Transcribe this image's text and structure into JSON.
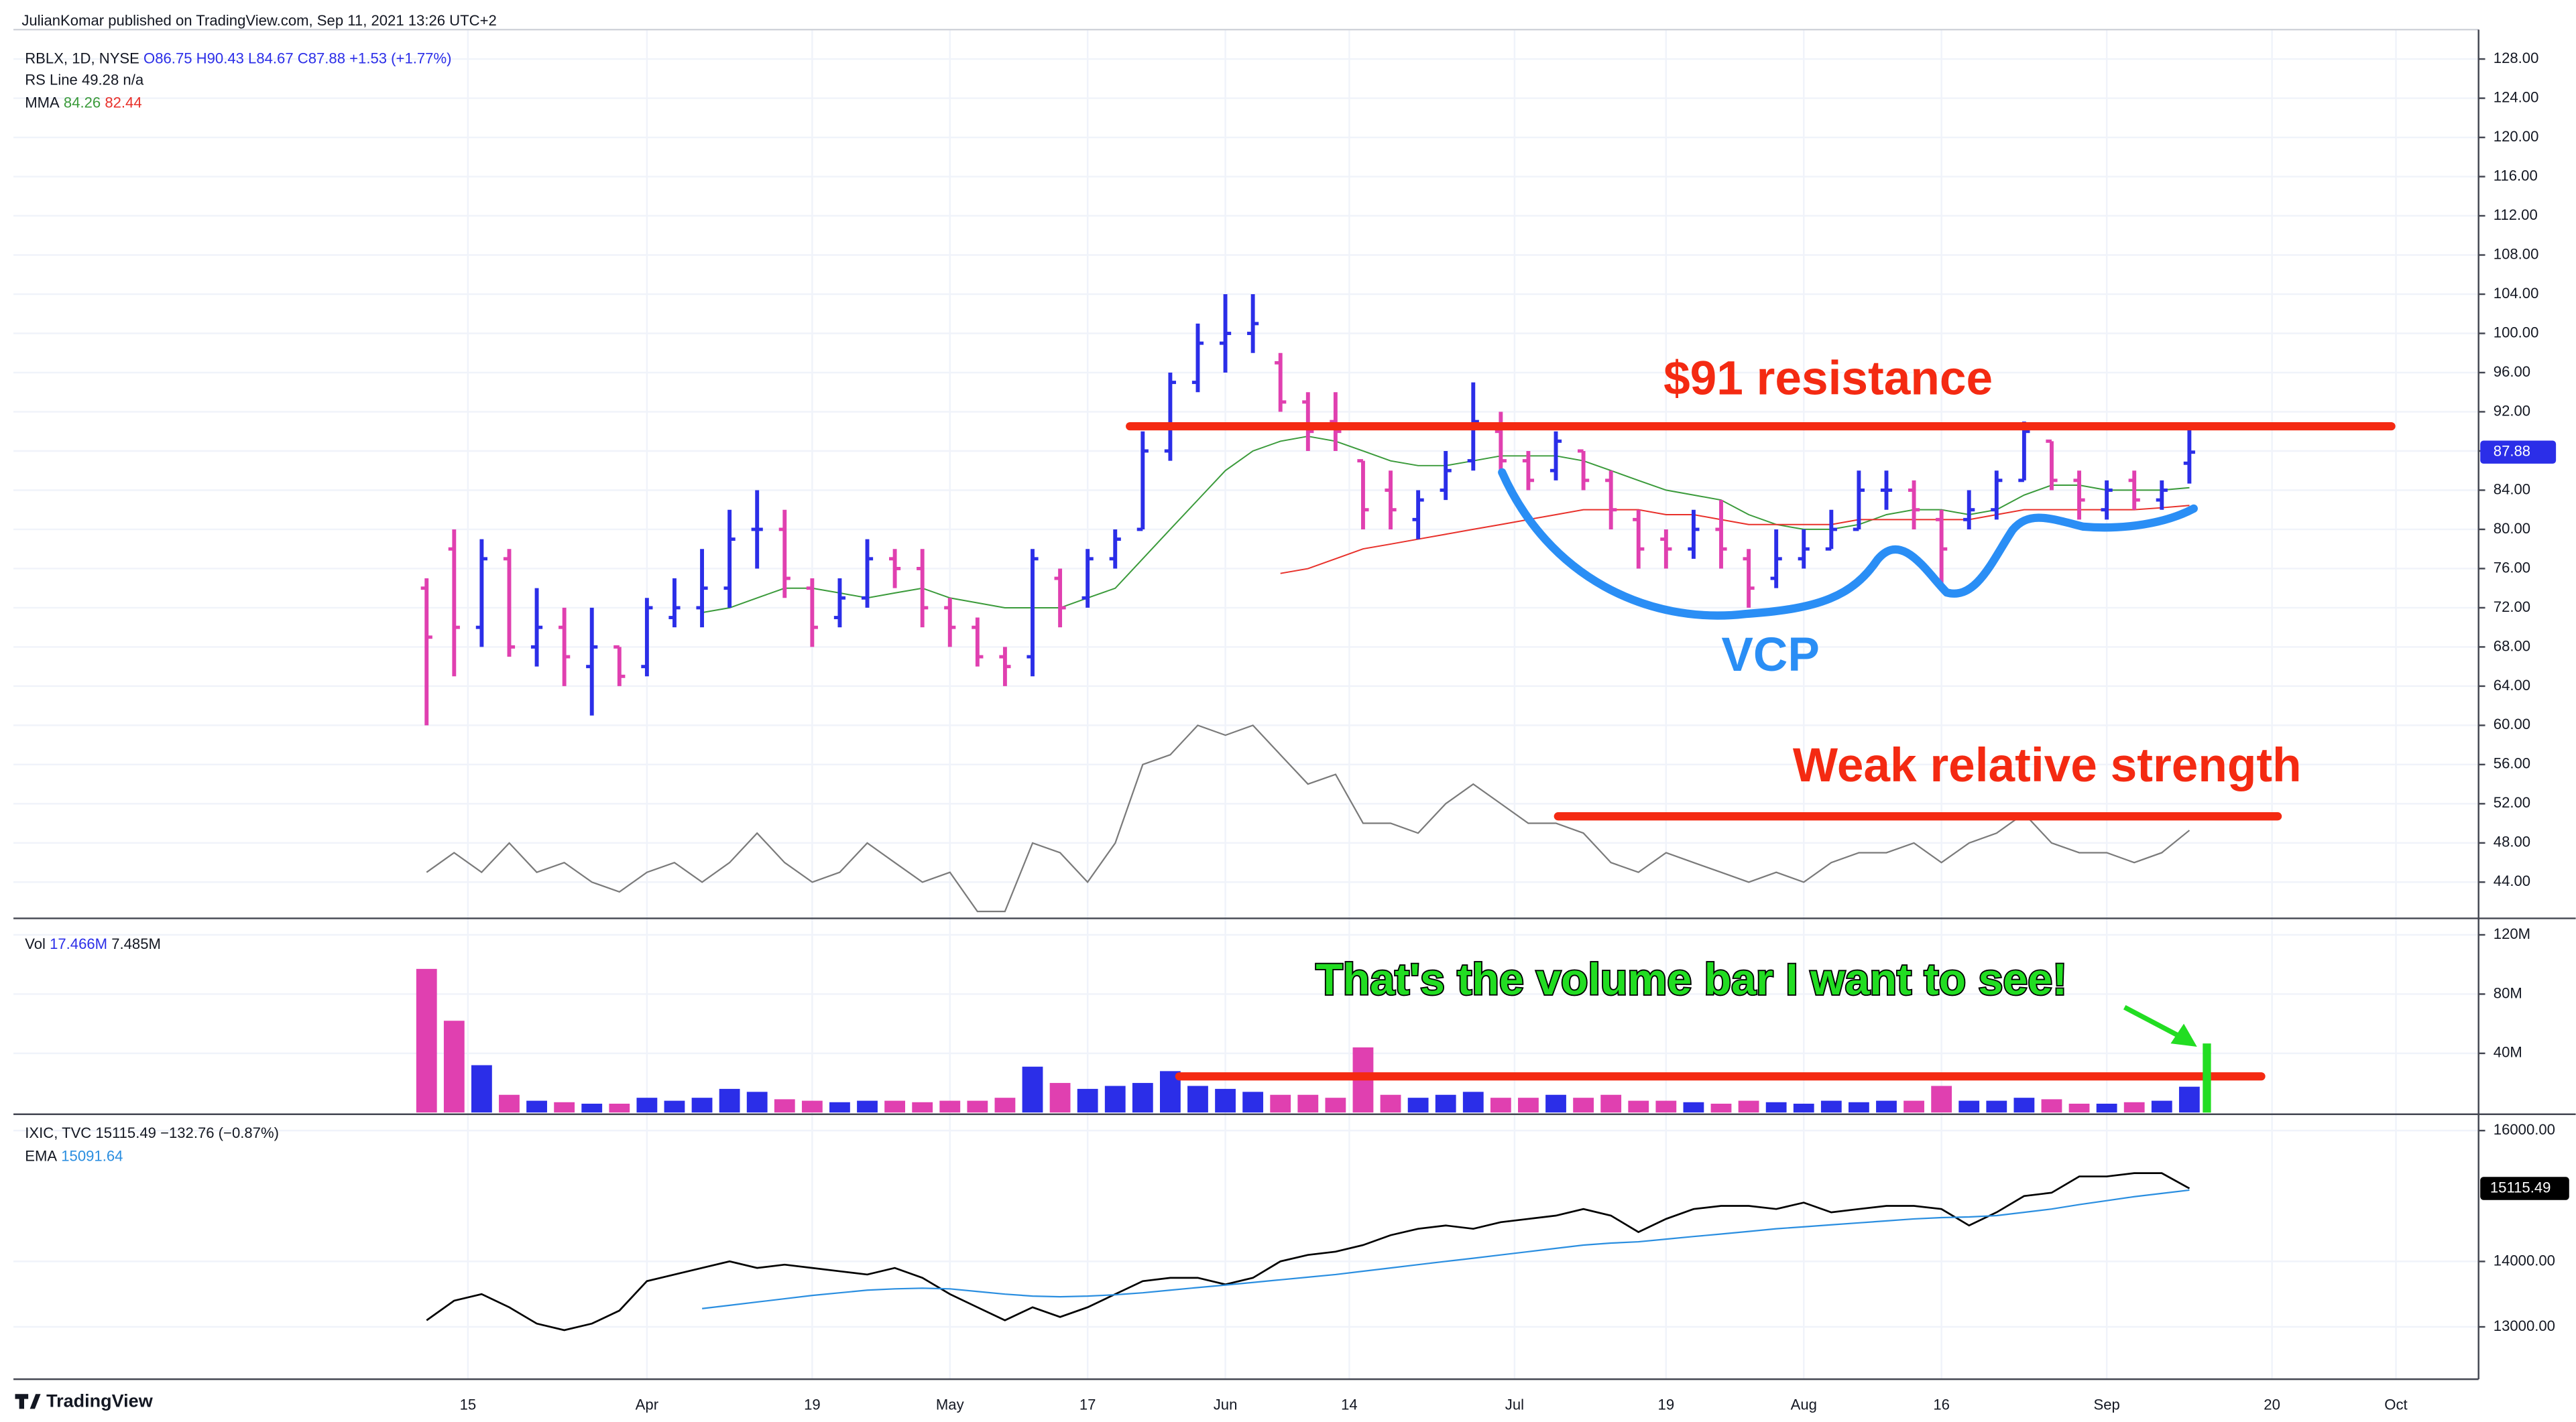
{
  "header": {
    "publisher": "JulianKomar published on TradingView.com, Sep 11, 2021 13:26 UTC+2",
    "footer": "TradingView"
  },
  "annotations": [
    "$91 resistance",
    "VCP",
    "Weak relative strength",
    "That's the volume bar I want to see!"
  ],
  "chart_data": [
    {
      "type": "ohlc",
      "legend": [
        "RBLX, 1D, NYSE",
        "O86.75 H90.43 L84.67 C87.88 +1.53 (+1.77%)",
        "RS Line",
        "49.28",
        "n/a",
        "MMA",
        "84.26",
        "82.44"
      ],
      "x": [
        0,
        2,
        4,
        6,
        8,
        10,
        12,
        14,
        16,
        18,
        20,
        22,
        24,
        26,
        28,
        30,
        32,
        34,
        36,
        38,
        40,
        42,
        44,
        46,
        48,
        50,
        52,
        54,
        56,
        58,
        60,
        62,
        64,
        66,
        68,
        70,
        72,
        74,
        76,
        78,
        80,
        82,
        84,
        86,
        88,
        90,
        92,
        94,
        96,
        98,
        100,
        102,
        104,
        106,
        108,
        110,
        112,
        114,
        116,
        118,
        120,
        122,
        124,
        126,
        128
      ],
      "open": [
        74,
        78,
        70,
        77,
        68,
        70,
        66,
        68,
        66,
        71,
        72,
        74,
        80,
        80,
        74,
        71,
        73,
        77,
        76,
        72,
        70,
        67,
        67,
        75,
        73,
        77,
        80,
        88,
        95,
        99,
        100,
        97,
        93,
        91,
        87,
        84,
        81,
        84,
        87,
        90,
        87,
        86,
        88,
        85,
        81,
        79,
        78,
        80,
        77,
        75,
        77,
        78,
        80,
        84,
        84,
        81,
        81,
        82,
        85,
        89,
        85,
        82,
        85,
        83,
        86.75
      ],
      "high": [
        75,
        80,
        79,
        78,
        74,
        72,
        72,
        68,
        73,
        75,
        78,
        82,
        84,
        82,
        75,
        75,
        79,
        78,
        78,
        73,
        71,
        68,
        78,
        76,
        78,
        80,
        90,
        96,
        101,
        104,
        104,
        98,
        94,
        94,
        87,
        86,
        84,
        88,
        95,
        92,
        88,
        90,
        88,
        86,
        82,
        80,
        82,
        83,
        78,
        80,
        80,
        82,
        86,
        86,
        85,
        82,
        84,
        86,
        91,
        89,
        86,
        85,
        86,
        85,
        90.43
      ],
      "low": [
        60,
        65,
        68,
        67,
        66,
        64,
        61,
        64,
        65,
        70,
        70,
        72,
        76,
        73,
        68,
        70,
        72,
        74,
        70,
        68,
        66,
        64,
        65,
        70,
        72,
        76,
        80,
        87,
        94,
        96,
        98,
        92,
        88,
        88,
        80,
        80,
        79,
        83,
        86,
        86,
        84,
        85,
        84,
        80,
        76,
        76,
        77,
        76,
        72,
        74,
        76,
        78,
        80,
        82,
        80,
        74,
        80,
        81,
        85,
        84,
        81,
        81,
        82,
        82,
        84.67
      ],
      "close": [
        69,
        70,
        77,
        68,
        70,
        67,
        68,
        65,
        72,
        72,
        74,
        79,
        80,
        75,
        70,
        73,
        77,
        76,
        72,
        70,
        67,
        66,
        77,
        72,
        77,
        79,
        88,
        95,
        99,
        100,
        101,
        93,
        90,
        90,
        82,
        82,
        83,
        86,
        91,
        87,
        85,
        89,
        85,
        82,
        78,
        78,
        80,
        78,
        74,
        77,
        78,
        80,
        84,
        84,
        82,
        78,
        82,
        85,
        90,
        85,
        83,
        84,
        83,
        84,
        87.88
      ],
      "up_color": "#2b2ee8",
      "down_color": "#e040b0",
      "series": [
        {
          "name": "RS Line",
          "color": "#7a7a7a",
          "values": [
            45,
            47,
            45,
            48,
            45,
            46,
            44,
            43,
            45,
            46,
            44,
            46,
            49,
            46,
            44,
            45,
            48,
            46,
            44,
            45,
            41,
            41,
            48,
            47,
            44,
            48,
            56,
            57,
            60,
            59,
            60,
            57,
            54,
            55,
            50,
            50,
            49,
            52,
            54,
            52,
            50,
            50,
            49,
            46,
            45,
            47,
            46,
            45,
            44,
            45,
            44,
            46,
            47,
            47,
            48,
            46,
            48,
            49,
            51,
            48,
            47,
            47,
            46,
            47,
            49.28
          ]
        },
        {
          "color": "#3a9a3a",
          "values": [
            null,
            null,
            null,
            null,
            null,
            null,
            null,
            null,
            null,
            null,
            71.5,
            72,
            73,
            74,
            74,
            73.5,
            73,
            73.5,
            74,
            73,
            72.5,
            72,
            72,
            72,
            73,
            74,
            77,
            80,
            83,
            86,
            88,
            89,
            89.5,
            89,
            88,
            87,
            86.5,
            86.5,
            87,
            87.5,
            87.5,
            87.5,
            87,
            86,
            85,
            84,
            83.5,
            83,
            81.5,
            80.5,
            80,
            80,
            80.5,
            81.5,
            82,
            82,
            81.5,
            82,
            83.5,
            84.5,
            84.5,
            84,
            84,
            84,
            84.26
          ]
        },
        {
          "color": "#e8302a",
          "values": [
            null,
            null,
            null,
            null,
            null,
            null,
            null,
            null,
            null,
            null,
            null,
            null,
            null,
            null,
            null,
            null,
            null,
            null,
            null,
            null,
            null,
            null,
            null,
            null,
            null,
            null,
            null,
            null,
            null,
            null,
            null,
            75.5,
            76,
            77,
            78,
            78.5,
            79,
            79.5,
            80,
            80.5,
            81,
            81.5,
            82,
            82,
            82,
            81.5,
            81.5,
            81,
            80.5,
            80.5,
            80.5,
            80.5,
            81,
            81,
            81,
            81,
            81,
            81.5,
            82,
            82,
            82,
            82,
            82,
            82.2,
            82.44
          ]
        }
      ],
      "ylim": [
        40.3,
        131
      ],
      "yticks": [
        {
          "value": 44,
          "label": "44.00"
        },
        {
          "value": 48,
          "label": "48.00"
        },
        {
          "value": 52,
          "label": "52.00"
        },
        {
          "value": 56,
          "label": "56.00"
        },
        {
          "value": 60,
          "label": "60.00"
        },
        {
          "value": 64,
          "label": "64.00"
        },
        {
          "value": 68,
          "label": "68.00"
        },
        {
          "value": 72,
          "label": "72.00"
        },
        {
          "value": 76,
          "label": "76.00"
        },
        {
          "value": 80,
          "label": "80.00"
        },
        {
          "value": 84,
          "label": "84.00"
        },
        {
          "value": 88,
          "label": "88.00"
        },
        {
          "value": 92,
          "label": "92.00"
        },
        {
          "value": 96,
          "label": "96.00"
        },
        {
          "value": 100,
          "label": "100.00"
        },
        {
          "value": 104,
          "label": "104.00"
        },
        {
          "value": 108,
          "label": "108.00"
        },
        {
          "value": 112,
          "label": "112.00"
        },
        {
          "value": 116,
          "label": "116.00"
        },
        {
          "value": 120,
          "label": "120.00"
        },
        {
          "value": 124,
          "label": "124.00"
        },
        {
          "value": 128,
          "label": "128.00"
        }
      ],
      "grid": true
    },
    {
      "type": "bar",
      "legend": [
        "Vol",
        "17.466M",
        "7.485M"
      ],
      "values": [
        97,
        62,
        32,
        12,
        8,
        7,
        6,
        6,
        10,
        8,
        10,
        16,
        14,
        9,
        8,
        7,
        8,
        8,
        7,
        8,
        8,
        10,
        31,
        20,
        16,
        18,
        20,
        28,
        18,
        16,
        14,
        12,
        12,
        10,
        44,
        12,
        10,
        12,
        14,
        10,
        10,
        12,
        10,
        12,
        8,
        8,
        7,
        6,
        8,
        7,
        6,
        8,
        7,
        8,
        8,
        18,
        8,
        8,
        10,
        9,
        6,
        6,
        7,
        8,
        17.466
      ],
      "ylim": [
        0,
        130
      ],
      "yticks": [
        {
          "value": 40,
          "label": "40M"
        },
        {
          "value": 80,
          "label": "80M"
        },
        {
          "value": 120,
          "label": "120M"
        }
      ]
    },
    {
      "type": "line",
      "legend": [
        "IXIC, TVC",
        "15115.49",
        "−132.76 (−0.87%)",
        "EMA",
        "15091.64"
      ],
      "series": [
        {
          "color": "#000000",
          "values": [
            13100,
            13400,
            13500,
            13300,
            13050,
            12950,
            13050,
            13250,
            13700,
            13800,
            13900,
            14000,
            13900,
            13950,
            13900,
            13850,
            13800,
            13900,
            13750,
            13500,
            13300,
            13100,
            13300,
            13150,
            13300,
            13500,
            13700,
            13750,
            13750,
            13650,
            13750,
            14000,
            14100,
            14150,
            14250,
            14400,
            14500,
            14550,
            14500,
            14600,
            14650,
            14700,
            14800,
            14700,
            14450,
            14650,
            14800,
            14850,
            14850,
            14800,
            14900,
            14750,
            14800,
            14850,
            14850,
            14800,
            14550,
            14750,
            15000,
            15050,
            15300,
            15300,
            15350,
            15350,
            15115.49
          ]
        },
        {
          "color": "#2a8ee0",
          "values": [
            null,
            null,
            null,
            null,
            null,
            null,
            null,
            null,
            null,
            null,
            13280,
            13330,
            13380,
            13430,
            13480,
            13520,
            13560,
            13580,
            13590,
            13580,
            13540,
            13500,
            13470,
            13460,
            13470,
            13490,
            13520,
            13560,
            13600,
            13640,
            13680,
            13720,
            13760,
            13800,
            13850,
            13900,
            13950,
            14000,
            14050,
            14100,
            14150,
            14200,
            14250,
            14280,
            14300,
            14340,
            14380,
            14420,
            14460,
            14500,
            14530,
            14560,
            14590,
            14620,
            14650,
            14670,
            14680,
            14700,
            14750,
            14800,
            14870,
            14930,
            14990,
            15040,
            15091.64
          ]
        }
      ],
      "ylim": [
        12200,
        16225
      ],
      "yticks": [
        {
          "value": 13000,
          "label": "13000.00"
        },
        {
          "value": 14000,
          "label": "14000.00"
        },
        {
          "value": 16000,
          "label": "16000.00"
        }
      ],
      "xlim": [
        -30,
        149
      ],
      "xticks": [
        {
          "value": 3,
          "label": "15"
        },
        {
          "value": 16,
          "label": "Apr"
        },
        {
          "value": 28,
          "label": "19"
        },
        {
          "value": 38,
          "label": "May"
        },
        {
          "value": 48,
          "label": "17"
        },
        {
          "value": 58,
          "label": "Jun"
        },
        {
          "value": 67,
          "label": "14"
        },
        {
          "value": 79,
          "label": "Jul"
        },
        {
          "value": 90,
          "label": "19"
        },
        {
          "value": 100,
          "label": "Aug"
        },
        {
          "value": 110,
          "label": "16"
        },
        {
          "value": 122,
          "label": "Sep"
        },
        {
          "value": 134,
          "label": "20"
        },
        {
          "value": 143,
          "label": "Oct"
        }
      ]
    }
  ]
}
